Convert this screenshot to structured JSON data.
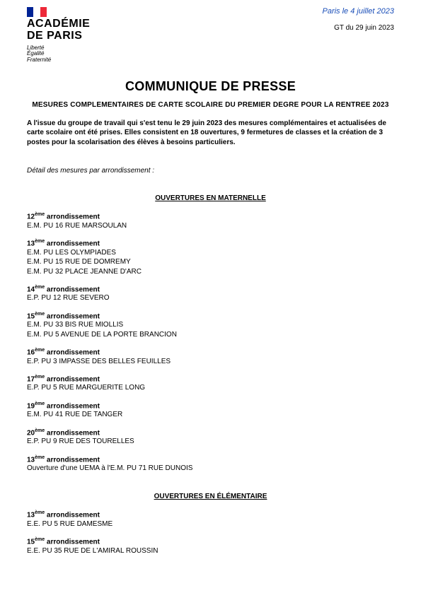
{
  "header": {
    "academy_line1": "ACADÉMIE",
    "academy_line2": "DE PARIS",
    "motto1": "Liberté",
    "motto2": "Égalité",
    "motto3": "Fraternité",
    "date_location": "Paris le 4 juillet 2023",
    "gt_date": "GT du 29 juin 2023"
  },
  "title": "COMMUNIQUE DE PRESSE",
  "subtitle": "MESURES COMPLEMENTAIRES DE CARTE SCOLAIRE DU PREMIER DEGRE POUR LA RENTREE 2023",
  "intro": "A l'issue du groupe de travail qui s'est tenu le 29 juin 2023 des mesures complémentaires et actualisées de carte scolaire ont été prises. Elles consistent en 18 ouvertures, 9 fermetures de classes et la création de 3 postes pour la scolarisation des élèves à besoins particuliers.",
  "detail_line": "Détail des mesures par arrondissement :",
  "sect1": {
    "heading": "OUVERTURES EN MATERNELLE",
    "g0": {
      "arr_num": "12",
      "arr_suffix": "ème",
      "arr_word": " arrondissement",
      "l0": "E.M. PU 16 RUE MARSOULAN"
    },
    "g1": {
      "arr_num": "13",
      "arr_suffix": "ème",
      "arr_word": " arrondissement",
      "l0": "E.M. PU LES OLYMPIADES",
      "l1": "E.M. PU 15 RUE DE DOMREMY",
      "l2": "E.M. PU 32 PLACE JEANNE D'ARC"
    },
    "g2": {
      "arr_num": "14",
      "arr_suffix": "ème",
      "arr_word": " arrondissement",
      "l0": "E.P. PU 12 RUE SEVERO"
    },
    "g3": {
      "arr_num": "15",
      "arr_suffix": "ème",
      "arr_word": " arrondissement",
      "l0": "E.M. PU 33 BIS RUE MIOLLIS",
      "l1": "E.M. PU 5 AVENUE DE LA PORTE BRANCION"
    },
    "g4": {
      "arr_num": "16",
      "arr_suffix": "ème",
      "arr_word": " arrondissement",
      "l0": "E.P. PU 3 IMPASSE DES BELLES FEUILLES"
    },
    "g5": {
      "arr_num": "17",
      "arr_suffix": "ème",
      "arr_word": " arrondissement",
      "l0": "E.P. PU 5 RUE MARGUERITE LONG"
    },
    "g6": {
      "arr_num": "19",
      "arr_suffix": "ème",
      "arr_word": " arrondissement",
      "l0": "E.M. PU 41 RUE DE TANGER"
    },
    "g7": {
      "arr_num": "20",
      "arr_suffix": "ème",
      "arr_word": " arrondissement",
      "l0": "E.P. PU 9 RUE DES TOURELLES"
    },
    "g8": {
      "arr_num": "13",
      "arr_suffix": "ème",
      "arr_word": " arrondissement",
      "l0": "Ouverture d'une UEMA à l'E.M. PU 71 RUE DUNOIS"
    }
  },
  "sect2": {
    "heading": "OUVERTURES EN ÉLÉMENTAIRE",
    "g0": {
      "arr_num": "13",
      "arr_suffix": "ème",
      "arr_word": " arrondissement",
      "l0": "E.E. PU 5 RUE DAMESME"
    },
    "g1": {
      "arr_num": "15",
      "arr_suffix": "ème",
      "arr_word": " arrondissement",
      "l0": "E.E. PU 35 RUE DE L'AMIRAL ROUSSIN"
    }
  },
  "colors": {
    "flag_blue": "#002395",
    "flag_white": "#ffffff",
    "flag_red": "#ed2939",
    "date_color": "#1a4eb8",
    "text": "#000000",
    "bg": "#ffffff"
  },
  "fonts": {
    "body_pt": 10,
    "title_pt": 18,
    "academy_pt": 16,
    "motto_pt": 8
  }
}
